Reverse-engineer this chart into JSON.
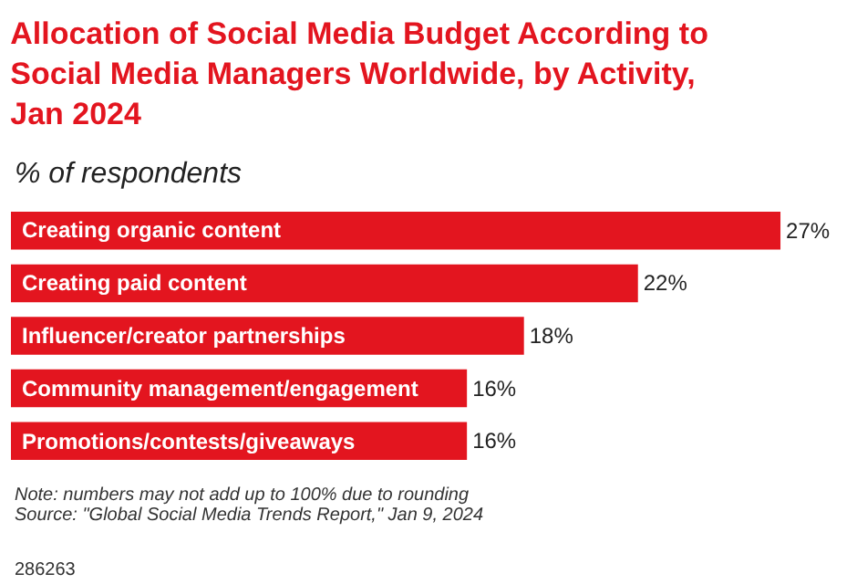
{
  "chart_data": {
    "type": "bar",
    "orientation": "horizontal",
    "title": "Allocation of Social Media Budget According to Social Media Managers Worldwide, by Activity, Jan 2024",
    "subtitle": "% of respondents",
    "categories": [
      "Creating organic content",
      "Creating paid content",
      "Influencer/creator partnerships",
      "Community management/engagement",
      "Promotions/contests/giveaways"
    ],
    "values": [
      27,
      22,
      18,
      16,
      16
    ],
    "value_labels": [
      "27%",
      "22%",
      "18%",
      "16%",
      "16%"
    ],
    "color": "#e3151f",
    "annotations": [
      "Note: numbers may not add up to 100% due to rounding",
      "Source: \"Global Social Media Trends Report,\" Jan 9, 2024",
      "286263"
    ]
  }
}
